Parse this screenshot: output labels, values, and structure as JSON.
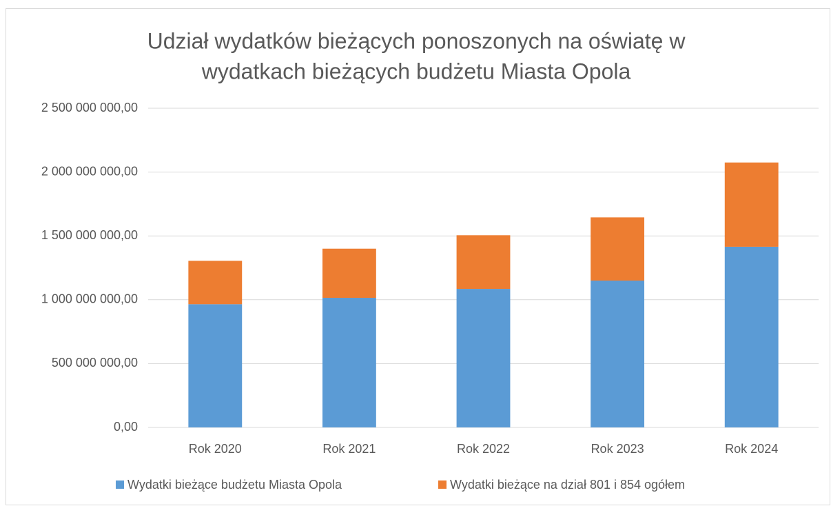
{
  "chart_data": {
    "type": "stacked_bar",
    "title": [
      "Udział wydatków bieżących ponoszonych na oświatę w",
      "wydatkach bieżących budżetu Miasta Opola"
    ],
    "categories": [
      "Rok 2020",
      "Rok 2021",
      "Rok 2022",
      "Rok 2023",
      "Rok 2024"
    ],
    "series": [
      {
        "name": "Wydatki bieżące budżetu Miasta Opola",
        "color": "#5b9bd5",
        "values": [
          965000000,
          1015000000,
          1085000000,
          1150000000,
          1415000000
        ]
      },
      {
        "name": "Wydatki bieżące na dział 801 i 854 ogółem",
        "color": "#ed7d31",
        "values": [
          340000000,
          385000000,
          420000000,
          495000000,
          660000000
        ]
      }
    ],
    "ylim": [
      0,
      2500000000
    ],
    "yticks": [
      {
        "value": 0,
        "label": "0,00"
      },
      {
        "value": 500000000,
        "label": "500 000 000,00"
      },
      {
        "value": 1000000000,
        "label": "1 000 000 000,00"
      },
      {
        "value": 1500000000,
        "label": "1 500 000 000,00"
      },
      {
        "value": 2000000000,
        "label": "2 000 000 000,00"
      },
      {
        "value": 2500000000,
        "label": "2 500 000 000,00"
      }
    ],
    "grid": true,
    "legend": "bottom"
  }
}
